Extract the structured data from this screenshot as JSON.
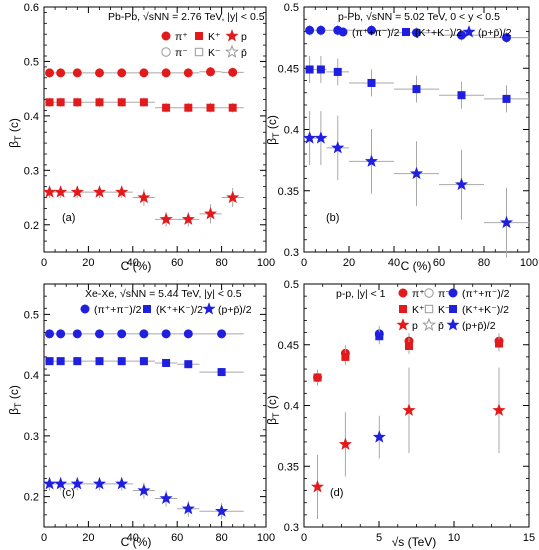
{
  "colors": {
    "red": "#e31a1c",
    "blue": "#1f1fe0",
    "ghost": "#9a9a9a",
    "bar": "#a8a8a8"
  },
  "chart_data": [
    {
      "type": "scatter",
      "panel_label": "(a)",
      "title": "Pb-Pb, √sNN = 2.76 TeV, |y| < 0.5",
      "xlabel": "C (%)",
      "ylabel": "βT (c)",
      "xlim": [
        0,
        100
      ],
      "ylim": [
        0.15,
        0.6
      ],
      "xticks": [
        0,
        20,
        40,
        60,
        80,
        100
      ],
      "yticks": [
        0.2,
        0.3,
        0.4,
        0.5,
        0.6
      ],
      "grid": false,
      "legend_position": "top-right",
      "legend": [
        {
          "label": "π⁺",
          "color": "red",
          "marker": "circle",
          "filled": true
        },
        {
          "label": "K⁺",
          "color": "red",
          "marker": "square",
          "filled": true
        },
        {
          "label": "p",
          "color": "red",
          "marker": "star",
          "filled": true
        },
        {
          "label": "π⁻",
          "color": "ghost",
          "marker": "circle",
          "filled": false
        },
        {
          "label": "K⁻",
          "color": "ghost",
          "marker": "square",
          "filled": false
        },
        {
          "label": "p̄",
          "color": "ghost",
          "marker": "star",
          "filled": false
        }
      ],
      "series": [
        {
          "name": "π⁺",
          "color": "red",
          "marker": "circle",
          "x": [
            2.5,
            7.5,
            15,
            25,
            35,
            45,
            55,
            65,
            75,
            85
          ],
          "xerr": [
            2.5,
            2.5,
            5,
            5,
            5,
            5,
            5,
            5,
            5,
            5
          ],
          "y": [
            0.479,
            0.479,
            0.479,
            0.479,
            0.479,
            0.479,
            0.479,
            0.479,
            0.481,
            0.48
          ],
          "yerr": [
            0.003,
            0.003,
            0.003,
            0.003,
            0.003,
            0.003,
            0.003,
            0.003,
            0.004,
            0.004
          ]
        },
        {
          "name": "K⁺",
          "color": "red",
          "marker": "square",
          "x": [
            2.5,
            7.5,
            15,
            25,
            35,
            45,
            55,
            65,
            75,
            85
          ],
          "xerr": [
            2.5,
            2.5,
            5,
            5,
            5,
            5,
            5,
            5,
            5,
            5
          ],
          "y": [
            0.425,
            0.425,
            0.425,
            0.425,
            0.425,
            0.425,
            0.415,
            0.415,
            0.415,
            0.415
          ],
          "yerr": [
            0.004,
            0.004,
            0.004,
            0.004,
            0.004,
            0.004,
            0.004,
            0.004,
            0.004,
            0.004
          ]
        },
        {
          "name": "p",
          "color": "red",
          "marker": "star",
          "x": [
            2.5,
            7.5,
            15,
            25,
            35,
            45,
            55,
            65,
            75,
            85
          ],
          "xerr": [
            2.5,
            2.5,
            5,
            5,
            5,
            5,
            5,
            5,
            5,
            5
          ],
          "y": [
            0.26,
            0.26,
            0.26,
            0.26,
            0.26,
            0.25,
            0.21,
            0.21,
            0.22,
            0.25
          ],
          "yerr": [
            0.005,
            0.005,
            0.005,
            0.005,
            0.005,
            0.007,
            0.006,
            0.006,
            0.008,
            0.008
          ]
        }
      ]
    },
    {
      "type": "scatter",
      "panel_label": "(b)",
      "title": "p-Pb, √sNN = 5.02 TeV, 0 < y < 0.5",
      "xlabel": "C (%)",
      "ylabel": "βT (c)",
      "xlim": [
        0,
        100
      ],
      "ylim": [
        0.3,
        0.5
      ],
      "xticks": [
        0,
        20,
        40,
        60,
        80,
        100
      ],
      "yticks": [
        0.3,
        0.35,
        0.4,
        0.45,
        0.5
      ],
      "grid": false,
      "legend_position": "top",
      "legend": [
        {
          "label": "(π⁺+π⁻)/2",
          "color": "blue",
          "marker": "circle",
          "filled": true
        },
        {
          "label": "(K⁺+K⁻)/2",
          "color": "blue",
          "marker": "square",
          "filled": true
        },
        {
          "label": "(p+p̄)/2",
          "color": "blue",
          "marker": "star",
          "filled": true
        }
      ],
      "series": [
        {
          "name": "(π⁺+π⁻)/2",
          "color": "blue",
          "marker": "circle",
          "x": [
            2.5,
            7.5,
            15,
            30,
            50,
            70,
            90
          ],
          "xerr": [
            2.5,
            2.5,
            5,
            10,
            10,
            10,
            10
          ],
          "y": [
            0.481,
            0.481,
            0.481,
            0.481,
            0.479,
            0.477,
            0.475
          ],
          "yerr": [
            0.002,
            0.002,
            0.002,
            0.002,
            0.002,
            0.002,
            0.002
          ]
        },
        {
          "name": "(K⁺+K⁻)/2",
          "color": "blue",
          "marker": "square",
          "x": [
            2.5,
            7.5,
            15,
            30,
            50,
            70,
            90
          ],
          "xerr": [
            2.5,
            2.5,
            5,
            10,
            10,
            10,
            10
          ],
          "y": [
            0.449,
            0.449,
            0.447,
            0.438,
            0.433,
            0.428,
            0.425
          ],
          "yerr": [
            0.005,
            0.005,
            0.005,
            0.005,
            0.005,
            0.005,
            0.005
          ]
        },
        {
          "name": "(p+p̄)/2",
          "color": "blue",
          "marker": "star",
          "x": [
            2.5,
            7.5,
            15,
            30,
            50,
            70,
            90
          ],
          "xerr": [
            2.5,
            2.5,
            5,
            10,
            10,
            10,
            10
          ],
          "y": [
            0.393,
            0.393,
            0.385,
            0.374,
            0.364,
            0.355,
            0.324
          ],
          "yerr": [
            0.01,
            0.01,
            0.012,
            0.012,
            0.012,
            0.013,
            0.013
          ]
        }
      ]
    },
    {
      "type": "scatter",
      "panel_label": "(c)",
      "title": "Xe-Xe, √sNN = 5.44 TeV, |y| < 0.5",
      "xlabel": "C (%)",
      "ylabel": "βT (c)",
      "xlim": [
        0,
        100
      ],
      "ylim": [
        0.15,
        0.55
      ],
      "xticks": [
        0,
        20,
        40,
        60,
        80,
        100
      ],
      "yticks": [
        0.2,
        0.3,
        0.4,
        0.5
      ],
      "grid": false,
      "legend_position": "top",
      "legend": [
        {
          "label": "(π⁺+π⁻)/2",
          "color": "blue",
          "marker": "circle",
          "filled": true
        },
        {
          "label": "(K⁺+K⁻)/2",
          "color": "blue",
          "marker": "square",
          "filled": true
        },
        {
          "label": "(p+p̄)/2",
          "color": "blue",
          "marker": "star",
          "filled": true
        }
      ],
      "series": [
        {
          "name": "(π⁺+π⁻)/2",
          "color": "blue",
          "marker": "circle",
          "x": [
            2.5,
            7.5,
            15,
            25,
            35,
            45,
            55,
            65,
            80
          ],
          "xerr": [
            2.5,
            2.5,
            5,
            5,
            5,
            5,
            5,
            5,
            10
          ],
          "y": [
            0.468,
            0.468,
            0.468,
            0.468,
            0.468,
            0.468,
            0.468,
            0.468,
            0.468
          ],
          "yerr": [
            0.003,
            0.003,
            0.003,
            0.003,
            0.003,
            0.003,
            0.003,
            0.003,
            0.003
          ]
        },
        {
          "name": "(K⁺+K⁻)/2",
          "color": "blue",
          "marker": "square",
          "x": [
            2.5,
            7.5,
            15,
            25,
            35,
            45,
            55,
            65,
            80
          ],
          "xerr": [
            2.5,
            2.5,
            5,
            5,
            5,
            5,
            5,
            5,
            10
          ],
          "y": [
            0.423,
            0.423,
            0.423,
            0.423,
            0.423,
            0.423,
            0.42,
            0.418,
            0.405
          ],
          "yerr": [
            0.003,
            0.003,
            0.003,
            0.003,
            0.003,
            0.003,
            0.003,
            0.003,
            0.003
          ]
        },
        {
          "name": "(p+p̄)/2",
          "color": "blue",
          "marker": "star",
          "x": [
            2.5,
            7.5,
            15,
            25,
            35,
            45,
            55,
            65,
            80
          ],
          "xerr": [
            2.5,
            2.5,
            5,
            5,
            5,
            5,
            5,
            5,
            10
          ],
          "y": [
            0.221,
            0.221,
            0.221,
            0.221,
            0.221,
            0.21,
            0.197,
            0.18,
            0.176
          ],
          "yerr": [
            0.005,
            0.005,
            0.005,
            0.005,
            0.005,
            0.006,
            0.006,
            0.006,
            0.006
          ]
        }
      ]
    },
    {
      "type": "scatter",
      "panel_label": "(d)",
      "title": "p-p, |y| < 1",
      "xlabel": "√s (TeV)",
      "ylabel": "βT (c)",
      "xlim": [
        0,
        15
      ],
      "ylim": [
        0.3,
        0.5
      ],
      "xticks": [
        0,
        5,
        10,
        15
      ],
      "yticks": [
        0.3,
        0.35,
        0.4,
        0.45,
        0.5
      ],
      "grid": false,
      "legend_position": "top",
      "legend": [
        {
          "label": "π⁺",
          "color": "red",
          "marker": "circle",
          "filled": true
        },
        {
          "label": "π⁻",
          "color": "ghost",
          "marker": "circle",
          "filled": false
        },
        {
          "label": "(π⁺+π⁻)/2",
          "color": "blue",
          "marker": "circle",
          "filled": true
        },
        {
          "label": "K⁺",
          "color": "red",
          "marker": "square",
          "filled": true
        },
        {
          "label": "K⁻",
          "color": "ghost",
          "marker": "square",
          "filled": false
        },
        {
          "label": "(K⁺+K⁻)/2",
          "color": "blue",
          "marker": "square",
          "filled": true
        },
        {
          "label": "p",
          "color": "red",
          "marker": "star",
          "filled": true
        },
        {
          "label": "p̄",
          "color": "ghost",
          "marker": "star",
          "filled": false
        },
        {
          "label": "(p+p̄)/2",
          "color": "blue",
          "marker": "star",
          "filled": true
        }
      ],
      "series": [
        {
          "name": "π⁺",
          "color": "red",
          "marker": "circle",
          "x": [
            0.9,
            2.76,
            7,
            13
          ],
          "y": [
            0.423,
            0.443,
            0.453,
            0.453
          ],
          "yerr": [
            0.003,
            0.003,
            0.003,
            0.003
          ]
        },
        {
          "name": "K⁺",
          "color": "red",
          "marker": "square",
          "x": [
            0.9,
            2.76,
            7,
            13
          ],
          "y": [
            0.423,
            0.44,
            0.449,
            0.451
          ],
          "yerr": [
            0.003,
            0.003,
            0.003,
            0.003
          ]
        },
        {
          "name": "p",
          "color": "red",
          "marker": "star",
          "x": [
            0.9,
            2.76,
            7,
            13
          ],
          "y": [
            0.333,
            0.368,
            0.396,
            0.396
          ],
          "yerr": [
            0.012,
            0.012,
            0.016,
            0.016
          ]
        },
        {
          "name": "(π⁺+π⁻)/2",
          "color": "blue",
          "marker": "circle",
          "x": [
            5.02
          ],
          "y": [
            0.459
          ],
          "yerr": [
            0.003
          ]
        },
        {
          "name": "(K⁺+K⁻)/2",
          "color": "blue",
          "marker": "square",
          "x": [
            5.02
          ],
          "y": [
            0.457
          ],
          "yerr": [
            0.003
          ]
        },
        {
          "name": "(p+p̄)/2",
          "color": "blue",
          "marker": "star",
          "x": [
            5.02
          ],
          "y": [
            0.374
          ],
          "yerr": [
            0.008
          ]
        }
      ]
    }
  ]
}
